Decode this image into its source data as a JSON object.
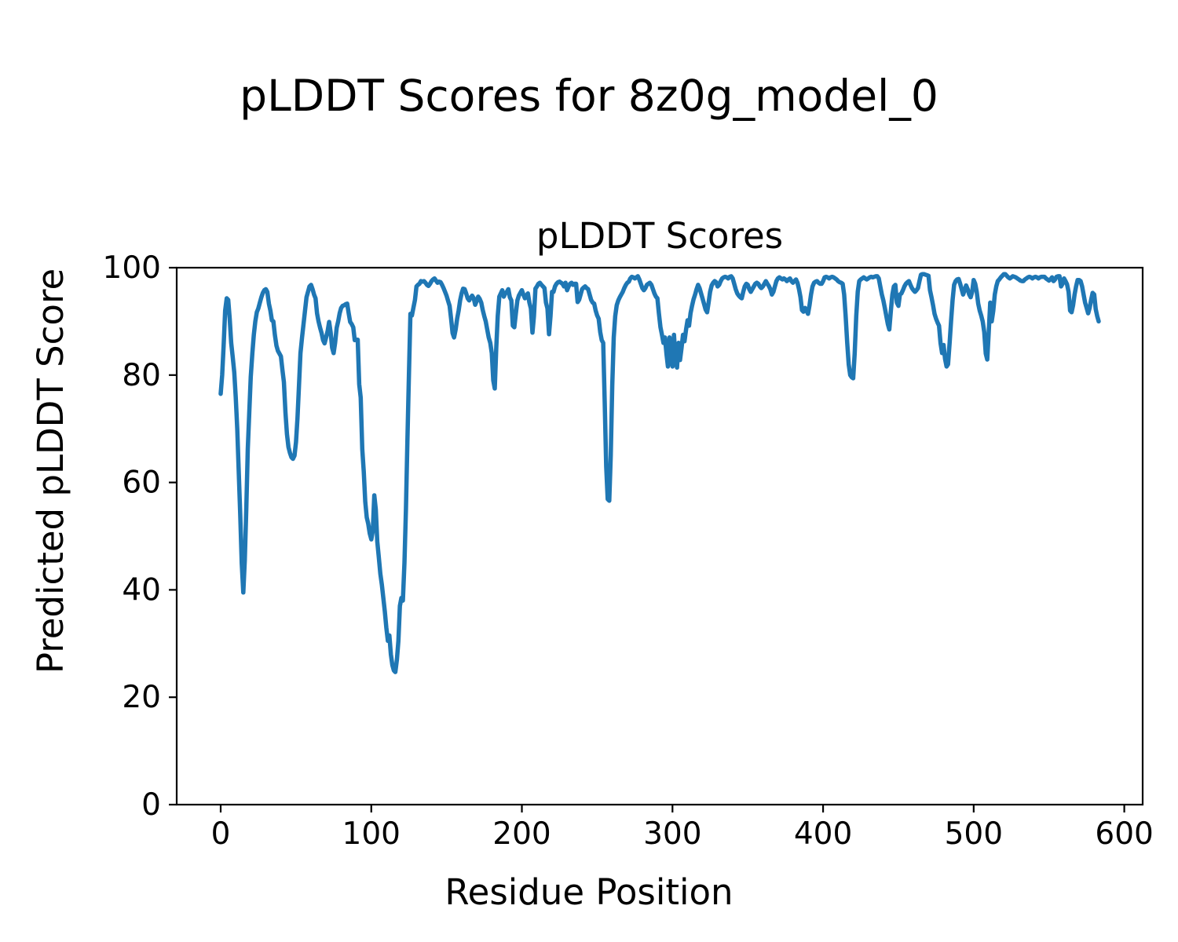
{
  "figure": {
    "suptitle": "pLDDT Scores for 8z0g_model_0",
    "background_color": "#ffffff",
    "text_color": "#000000"
  },
  "chart_data": {
    "type": "line",
    "title": "pLDDT Scores",
    "xlabel": "Residue Position",
    "ylabel": "Predicted pLDDT Score",
    "xlim": [
      -29.2,
      612.2
    ],
    "ylim": [
      0,
      100
    ],
    "x_ticks": [
      0,
      100,
      200,
      300,
      400,
      500,
      600
    ],
    "y_ticks": [
      0,
      20,
      40,
      60,
      80,
      100
    ],
    "grid": false,
    "legend": "none",
    "line_color": "#1f77b4",
    "line_width": 5.5,
    "axis_color": "#000000",
    "series": [
      {
        "name": "pLDDT",
        "x_start": 0,
        "x_step": 1,
        "values": [
          76.5,
          80,
          85.6,
          92,
          94.3,
          94,
          90.5,
          86,
          83.4,
          80.5,
          75.8,
          70,
          62,
          54,
          45,
          39.5,
          45.5,
          55,
          66.2,
          73,
          79.7,
          84,
          87.5,
          90,
          91.7,
          92.4,
          93.5,
          94.5,
          95.3,
          95.8,
          96,
          95.5,
          93.3,
          92,
          90.2,
          90,
          87.5,
          85.5,
          84.5,
          84,
          83.5,
          81,
          78.7,
          73,
          69,
          66.6,
          65.5,
          64.7,
          64.4,
          65,
          67.5,
          72,
          78,
          84.1,
          87,
          89.5,
          92,
          94.5,
          95.5,
          96.5,
          96.8,
          96,
          95,
          94.3,
          91.5,
          90,
          88.8,
          87.8,
          86.5,
          85.9,
          87,
          88.2,
          89.9,
          88,
          85.1,
          84.1,
          86,
          88.8,
          90,
          91.5,
          92.5,
          92.9,
          93,
          93.2,
          93.3,
          91.5,
          89.9,
          89.5,
          88.9,
          86.5,
          86.6,
          86.6,
          78.3,
          75.8,
          66.2,
          62,
          56.4,
          53.5,
          52.3,
          50.5,
          49.4,
          51,
          57.6,
          55,
          49,
          46,
          43,
          41,
          38.5,
          36,
          33,
          30.5,
          31.5,
          28,
          26,
          25,
          24.7,
          27,
          30.5,
          37,
          38.5,
          38,
          45,
          55,
          68,
          80,
          91.4,
          91.1,
          92.6,
          94,
          96.5,
          96.8,
          97,
          97.5,
          97.4,
          97.5,
          97.2,
          96.8,
          96.6,
          97,
          97.5,
          97.8,
          98,
          97.6,
          97.2,
          97.4,
          97.3,
          96.8,
          96.2,
          95.5,
          94.8,
          93.8,
          92.9,
          90.5,
          87.8,
          87,
          88.5,
          90.5,
          92,
          93.9,
          95.2,
          96.1,
          96,
          95.2,
          94.3,
          93.9,
          94.4,
          94.8,
          94.3,
          93.1,
          93.8,
          94.6,
          94.2,
          93.5,
          92.1,
          91,
          90,
          88.5,
          87,
          86,
          84.1,
          79,
          77.5,
          85,
          91,
          94.6,
          95.2,
          95.8,
          94.6,
          95.2,
          95.5,
          96,
          94.5,
          93.9,
          89.2,
          88.9,
          91.5,
          93.9,
          94.8,
          95.3,
          95.8,
          95,
          94.3,
          94.8,
          95.2,
          93.5,
          92.4,
          87.9,
          91,
          96.1,
          96.5,
          97,
          97.2,
          96.8,
          96.5,
          96.2,
          93.5,
          92.4,
          87.6,
          91,
          95.5,
          95.5,
          96.5,
          97,
          97.3,
          97.4,
          97.2,
          97,
          96.5,
          97.2,
          95.8,
          96.5,
          97,
          97.2,
          96.8,
          97,
          97,
          93.6,
          94,
          95,
          96,
          96.3,
          96.5,
          96.2,
          96,
          95,
          94,
          93.5,
          93.3,
          92,
          91.1,
          90.5,
          88,
          86.5,
          86,
          75,
          63,
          56.9,
          56.6,
          65,
          78,
          87,
          91,
          93,
          93.9,
          94.5,
          95,
          95.5,
          96.2,
          96.8,
          97.2,
          97.4,
          98,
          98.3,
          98.2,
          98,
          98.2,
          98.4,
          97.8,
          97,
          96.2,
          95.8,
          96.2,
          96.8,
          97,
          97.2,
          96.8,
          96,
          95.2,
          94.6,
          94.3,
          91.5,
          88.9,
          87.5,
          86,
          87,
          84,
          81.6,
          87,
          83,
          81.6,
          87.5,
          83,
          81.4,
          86,
          82.8,
          85,
          87.5,
          86.3,
          88.5,
          90.2,
          89.2,
          91.5,
          92.9,
          94.1,
          95,
          96,
          96.8,
          96.2,
          95.2,
          94.2,
          93.2,
          92.2,
          91.7,
          93.5,
          95.5,
          96.7,
          97.2,
          97.5,
          97.3,
          96.5,
          96.8,
          97.5,
          98,
          98.2,
          98.3,
          98.2,
          98,
          98.3,
          98.4,
          98,
          97,
          96,
          95.2,
          94.8,
          94.5,
          94.3,
          95.5,
          96.5,
          97,
          96.8,
          96,
          95.5,
          96,
          96.5,
          97,
          97.2,
          97,
          96.5,
          96.2,
          96.5,
          97,
          97.5,
          97,
          96.6,
          96,
          95,
          95.5,
          96.5,
          97.5,
          98,
          98.2,
          98,
          97.8,
          98,
          97.8,
          97.5,
          97.8,
          98,
          97.5,
          97.2,
          97.5,
          97.8,
          97.2,
          96,
          94.5,
          92.1,
          91.8,
          92.5,
          92,
          91.4,
          93,
          95,
          96.5,
          97.2,
          97.4,
          97.5,
          97.2,
          97,
          97,
          97.5,
          98.2,
          98.3,
          98.2,
          98,
          98.2,
          98.3,
          98.2,
          98,
          97.8,
          97.5,
          97.3,
          97.2,
          97,
          95,
          91,
          86,
          82,
          80,
          79.6,
          79.4,
          84,
          91,
          95.5,
          97.5,
          97.8,
          98,
          98.2,
          98,
          97.8,
          98,
          98.2,
          98.3,
          98.2,
          98.3,
          98.4,
          98.4,
          98,
          96.5,
          95,
          93.9,
          92.5,
          91,
          89.5,
          88.5,
          92,
          95,
          96.5,
          96.8,
          93.5,
          92.9,
          95,
          95.2,
          95.8,
          96.5,
          97,
          97.3,
          97.5,
          96.8,
          96.2,
          95.8,
          95.5,
          95.8,
          96.2,
          97.5,
          98.7,
          98.8,
          98.8,
          98.7,
          98.6,
          98.5,
          95.8,
          94.5,
          93,
          91.4,
          90.5,
          89.8,
          89.2,
          86,
          84.1,
          85.6,
          83,
          81.6,
          82,
          86,
          90.2,
          94,
          96.8,
          97.5,
          97.8,
          97.9,
          97,
          96,
          95,
          95.8,
          96.7,
          96,
          95,
          94.5,
          95.5,
          97.7,
          97,
          95.5,
          93.3,
          92,
          91.1,
          90,
          88,
          84,
          82.9,
          88,
          93.5,
          90,
          92,
          95,
          96.5,
          97.5,
          97.8,
          98.2,
          98.5,
          98.8,
          98.8,
          98.5,
          98.2,
          98,
          98.2,
          98.4,
          98.3,
          98.2,
          98,
          97.8,
          97.6,
          97.5,
          97.5,
          97.8,
          98,
          98.2,
          98.3,
          98.2,
          98,
          98.2,
          98.3,
          98.2,
          98,
          98.2,
          98.3,
          98.3,
          98.3,
          98,
          97.8,
          97.6,
          97.8,
          98.2,
          97.5,
          97.8,
          98.3,
          98.4,
          98.4,
          96.5,
          97,
          98,
          97.5,
          96.9,
          95.5,
          92,
          91.7,
          93,
          95,
          96.5,
          97.7,
          97.7,
          97.5,
          96.5,
          95,
          93.5,
          92.5,
          91.5,
          92.5,
          94,
          95.3,
          95,
          92.3,
          91,
          90
        ]
      }
    ]
  }
}
